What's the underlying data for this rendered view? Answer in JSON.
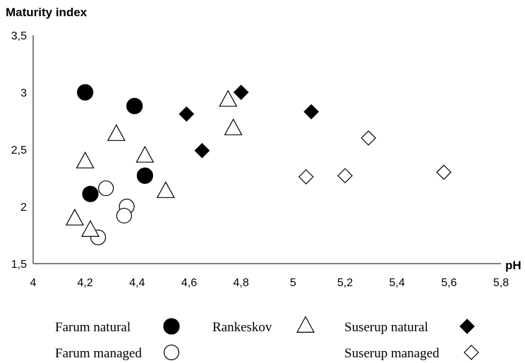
{
  "chart_data": {
    "type": "scatter",
    "title": "",
    "xlabel": "pH",
    "ylabel": "Maturity index",
    "xlim": [
      4,
      5.8
    ],
    "ylim": [
      1.5,
      3.5
    ],
    "x_ticks": [
      "4",
      "4,2",
      "4,4",
      "4,6",
      "4,8",
      "5",
      "5,2",
      "5,4",
      "5,6",
      "5,8"
    ],
    "y_ticks": [
      "1,5",
      "2",
      "2,5",
      "3",
      "3,5"
    ],
    "grid": false,
    "legend_position": "bottom",
    "series": [
      {
        "name": "Farum natural",
        "marker": "circle-filled",
        "points": [
          [
            4.2,
            3.0
          ],
          [
            4.39,
            2.88
          ],
          [
            4.43,
            2.27
          ],
          [
            4.22,
            2.11
          ]
        ]
      },
      {
        "name": "Farum managed",
        "marker": "circle-open",
        "points": [
          [
            4.28,
            2.16
          ],
          [
            4.36,
            2.0
          ],
          [
            4.35,
            1.92
          ],
          [
            4.25,
            1.73
          ]
        ]
      },
      {
        "name": "Rankeskov",
        "marker": "triangle-open",
        "points": [
          [
            4.32,
            2.63
          ],
          [
            4.2,
            2.39
          ],
          [
            4.43,
            2.44
          ],
          [
            4.51,
            2.13
          ],
          [
            4.16,
            1.89
          ],
          [
            4.22,
            1.79
          ],
          [
            4.75,
            2.93
          ],
          [
            4.77,
            2.68
          ]
        ]
      },
      {
        "name": "Suserup natural",
        "marker": "diamond-filled",
        "points": [
          [
            4.59,
            2.81
          ],
          [
            4.8,
            3.0
          ],
          [
            4.65,
            2.49
          ],
          [
            5.07,
            2.83
          ]
        ]
      },
      {
        "name": "Suserup managed",
        "marker": "diamond-open",
        "points": [
          [
            5.29,
            2.6
          ],
          [
            5.05,
            2.26
          ],
          [
            5.2,
            2.27
          ],
          [
            5.58,
            2.3
          ]
        ]
      }
    ]
  }
}
